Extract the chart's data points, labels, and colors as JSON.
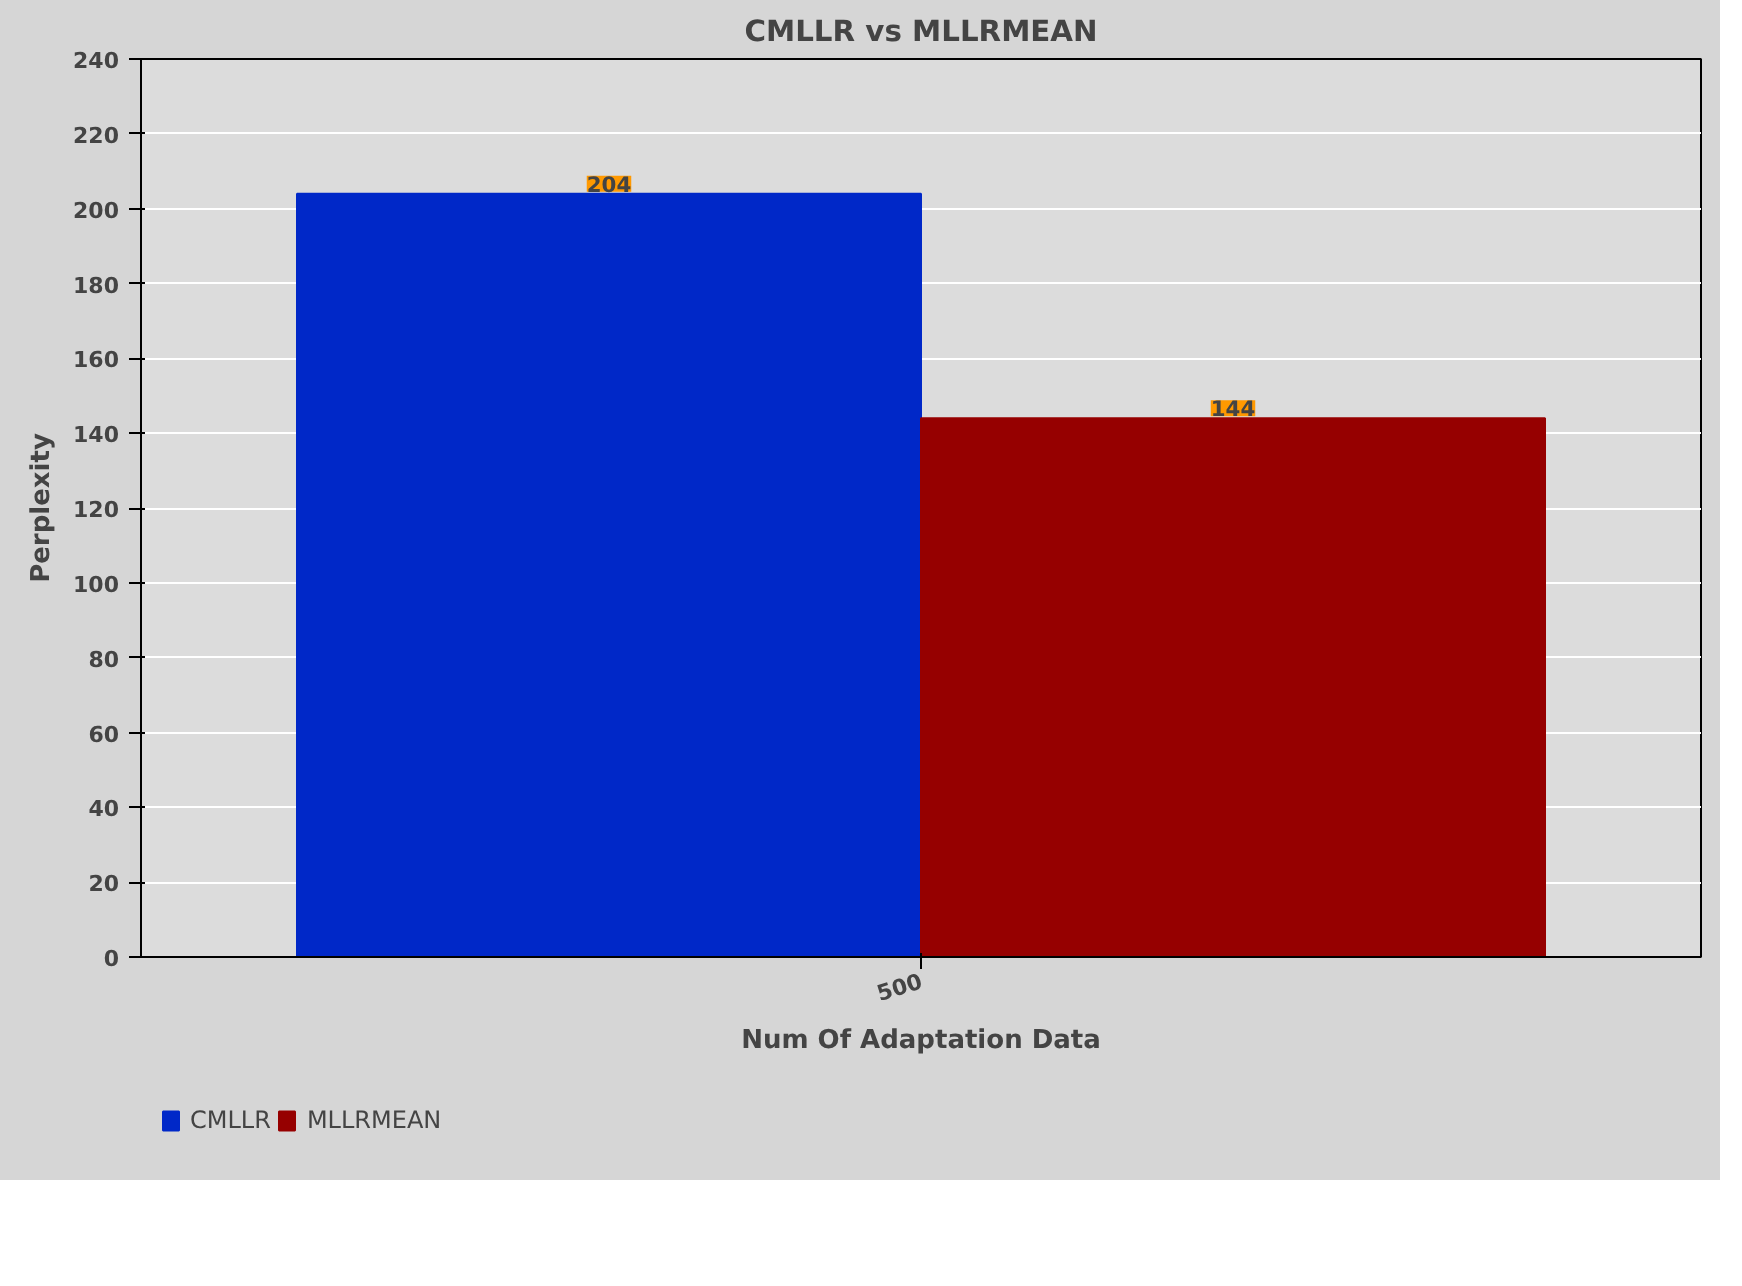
{
  "chart_data": {
    "type": "bar",
    "title": "CMLLR vs MLLRMEAN",
    "xlabel": "Num Of Adaptation Data",
    "ylabel": "Perplexity",
    "categories": [
      "500"
    ],
    "series": [
      {
        "name": "CMLLR",
        "color": "#0028c8",
        "values": [
          204
        ]
      },
      {
        "name": "MLLRMEAN",
        "color": "#960000",
        "values": [
          144
        ]
      }
    ],
    "ylim": [
      0,
      240
    ],
    "yticks": [
      0,
      20,
      40,
      60,
      80,
      100,
      120,
      140,
      160,
      180,
      200,
      220,
      240
    ],
    "grid": "y",
    "legend": "bottom left",
    "data_labels": true
  }
}
